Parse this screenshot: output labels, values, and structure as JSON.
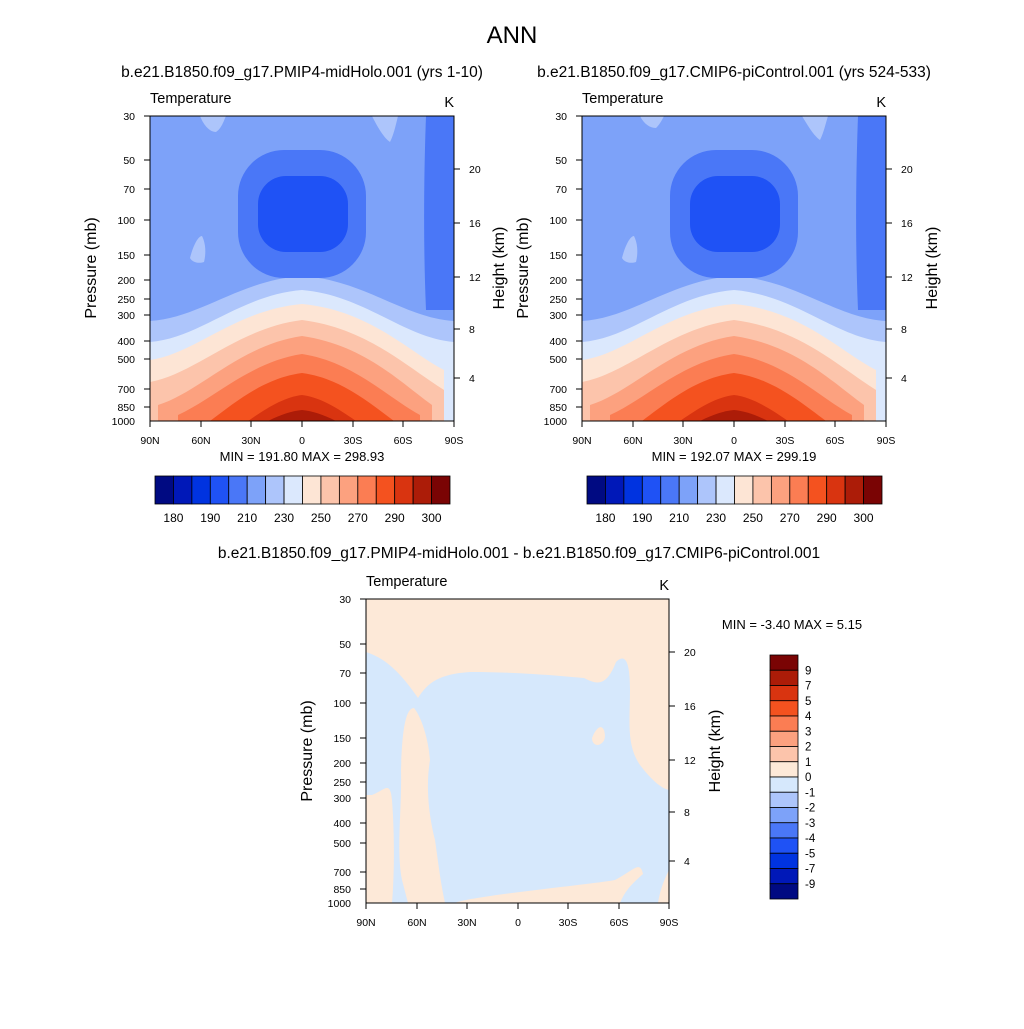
{
  "page": {
    "title": "ANN"
  },
  "colors": {
    "abs_levels": [
      "#000a82",
      "#0018b8",
      "#0033e0",
      "#1f52f5",
      "#4a77f7",
      "#7da2f9",
      "#adc5fb",
      "#dbe8fd",
      "#fde5d5",
      "#fcc4ab",
      "#fca17f",
      "#fb7d53",
      "#f4521f",
      "#d93410",
      "#ac1c08",
      "#7a0404"
    ],
    "diff_levels": [
      "#000a82",
      "#0018b8",
      "#0033e0",
      "#1f52f5",
      "#4a77f7",
      "#7da2f9",
      "#adc5fb",
      "#d6e8fc",
      "#fde9d8",
      "#fcc4ab",
      "#fca17f",
      "#fb7d53",
      "#f4521f",
      "#d93410",
      "#ac1c08",
      "#7a0404"
    ]
  },
  "chart_data": [
    {
      "type": "heatmap",
      "id": "p1",
      "title": "b.e21.B1850.f09_g17.PMIP4-midHolo.001 (yrs 1-10)",
      "left_label": "Temperature",
      "right_label": "K",
      "xlabel": "",
      "ylabel": "Pressure (mb)",
      "y2label": "Height (km)",
      "x_ticks": [
        "90N",
        "60N",
        "30N",
        "0",
        "30S",
        "60S",
        "90S"
      ],
      "y_ticks": [
        30,
        50,
        70,
        100,
        150,
        200,
        250,
        300,
        400,
        500,
        700,
        850,
        1000
      ],
      "y2_ticks": [
        4,
        8,
        12,
        16,
        20
      ],
      "ylim": [
        1000,
        30
      ],
      "y_scale": "log",
      "stats": "MIN = 191.80  MAX = 298.93",
      "min": 191.8,
      "max": 298.93,
      "colorbar": {
        "orientation": "horizontal",
        "labels": [
          "180",
          "190",
          "210",
          "230",
          "250",
          "270",
          "290",
          "300"
        ]
      }
    },
    {
      "type": "heatmap",
      "id": "p2",
      "title": "b.e21.B1850.f09_g17.CMIP6-piControl.001 (yrs 524-533)",
      "left_label": "Temperature",
      "right_label": "K",
      "xlabel": "",
      "ylabel": "Pressure (mb)",
      "y2label": "Height (km)",
      "x_ticks": [
        "90N",
        "60N",
        "30N",
        "0",
        "30S",
        "60S",
        "90S"
      ],
      "y_ticks": [
        30,
        50,
        70,
        100,
        150,
        200,
        250,
        300,
        400,
        500,
        700,
        850,
        1000
      ],
      "y2_ticks": [
        4,
        8,
        12,
        16,
        20
      ],
      "ylim": [
        1000,
        30
      ],
      "y_scale": "log",
      "stats": "MIN = 192.07  MAX = 299.19",
      "min": 192.07,
      "max": 299.19,
      "colorbar": {
        "orientation": "horizontal",
        "labels": [
          "180",
          "190",
          "210",
          "230",
          "250",
          "270",
          "290",
          "300"
        ]
      }
    },
    {
      "type": "heatmap",
      "id": "p3",
      "title": "b.e21.B1850.f09_g17.PMIP4-midHolo.001 - b.e21.B1850.f09_g17.CMIP6-piControl.001",
      "left_label": "Temperature",
      "right_label": "K",
      "xlabel": "",
      "ylabel": "Pressure (mb)",
      "y2label": "Height (km)",
      "x_ticks": [
        "90N",
        "60N",
        "30N",
        "0",
        "30S",
        "60S",
        "90S"
      ],
      "y_ticks": [
        30,
        50,
        70,
        100,
        150,
        200,
        250,
        300,
        400,
        500,
        700,
        850,
        1000
      ],
      "y2_ticks": [
        4,
        8,
        12,
        16,
        20
      ],
      "ylim": [
        1000,
        30
      ],
      "y_scale": "log",
      "stats": "MIN =  -3.40  MAX =   5.15",
      "min": -3.4,
      "max": 5.15,
      "colorbar": {
        "orientation": "vertical",
        "labels": [
          "9",
          "7",
          "5",
          "4",
          "3",
          "2",
          "1",
          "0",
          "-1",
          "-2",
          "-3",
          "-4",
          "-5",
          "-7",
          "-9"
        ]
      }
    }
  ]
}
